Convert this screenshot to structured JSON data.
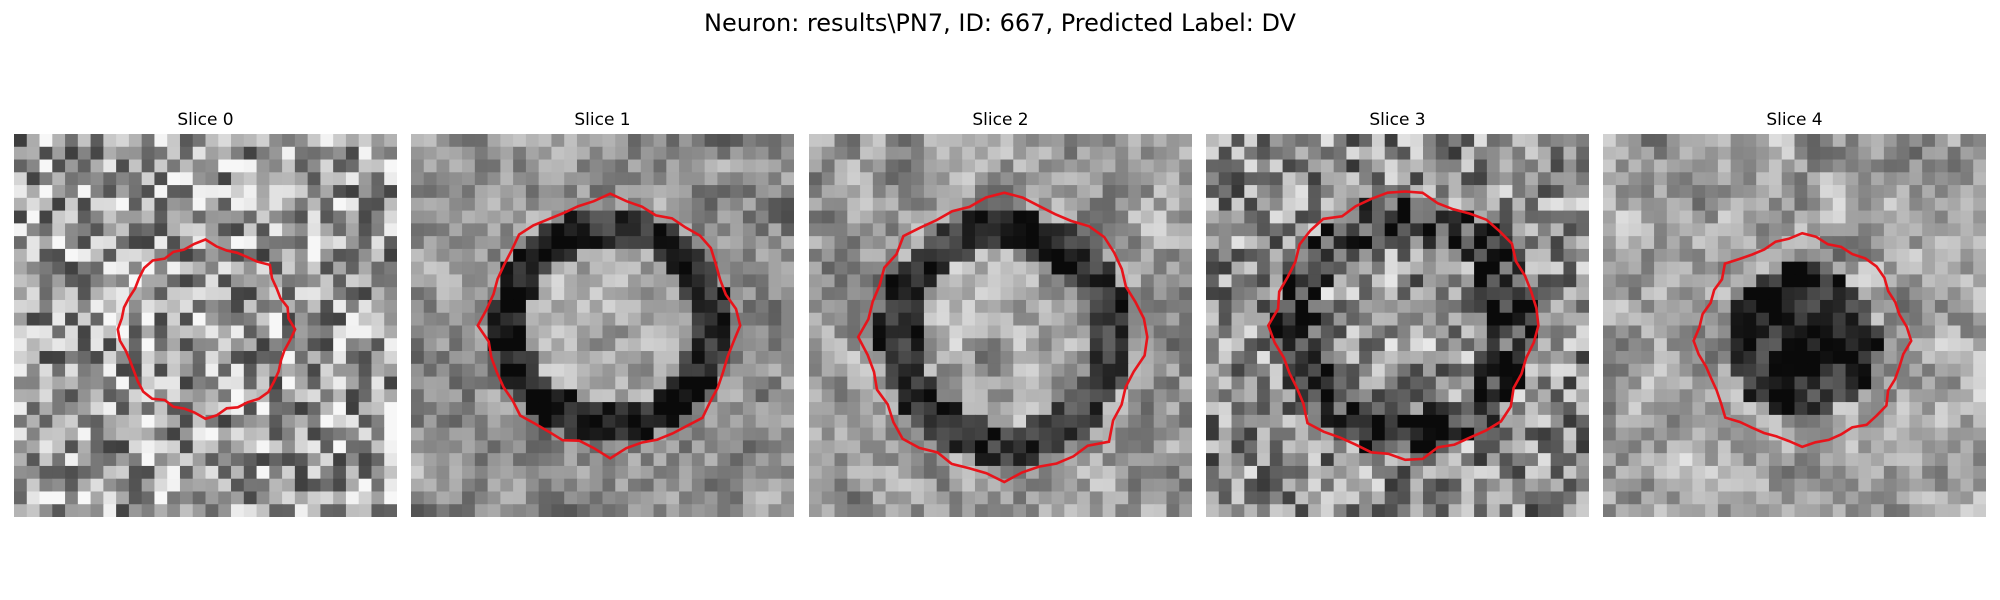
{
  "figure": {
    "title": "Neuron: results\\PN7, ID: 667, Predicted Label: DV",
    "grid_size": 30,
    "contour_color": "#e8141b"
  },
  "panels": [
    {
      "title": "Slice 0",
      "seed": 11,
      "base": 0.62,
      "noise": 0.38,
      "blur": 0,
      "ring": 0.0,
      "center_delta": 0.0,
      "ring_inner": 0.4,
      "ring_outer": 0.55,
      "contour_radius": 0.43,
      "contour_center": [
        0.5,
        0.51
      ]
    },
    {
      "title": "Slice 1",
      "seed": 23,
      "base": 0.55,
      "noise": 0.28,
      "blur": 1,
      "ring": -0.42,
      "center_delta": 0.1,
      "ring_inner": 0.42,
      "ring_outer": 0.62,
      "contour_radius": 0.63,
      "contour_center": [
        0.52,
        0.5
      ]
    },
    {
      "title": "Slice 2",
      "seed": 37,
      "base": 0.6,
      "noise": 0.3,
      "blur": 1,
      "ring": -0.4,
      "center_delta": 0.05,
      "ring_inner": 0.45,
      "ring_outer": 0.66,
      "contour_radius": 0.7,
      "contour_center": [
        0.51,
        0.53
      ]
    },
    {
      "title": "Slice 3",
      "seed": 51,
      "base": 0.55,
      "noise": 0.34,
      "blur": 0,
      "ring": -0.3,
      "center_delta": 0.02,
      "ring_inner": 0.45,
      "ring_outer": 0.68,
      "contour_radius": 0.66,
      "contour_center": [
        0.52,
        0.5
      ]
    },
    {
      "title": "Slice 4",
      "seed": 67,
      "base": 0.62,
      "noise": 0.3,
      "blur": 1,
      "ring": 0.0,
      "center_delta": -0.45,
      "ring_inner": 0.4,
      "ring_outer": 0.55,
      "contour_radius": 0.52,
      "contour_center": [
        0.52,
        0.54
      ]
    }
  ]
}
